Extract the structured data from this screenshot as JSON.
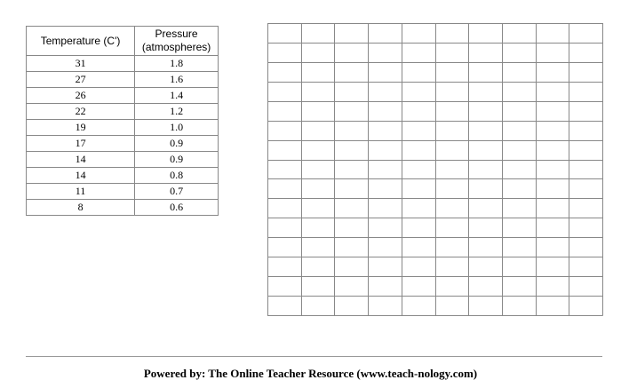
{
  "table": {
    "header": [
      "Temperature (C')",
      "Pressure (atmospheres)"
    ],
    "rows": [
      [
        "31",
        "1.8"
      ],
      [
        "27",
        "1.6"
      ],
      [
        "26",
        "1.4"
      ],
      [
        "22",
        "1.2"
      ],
      [
        "19",
        "1.0"
      ],
      [
        "17",
        "0.9"
      ],
      [
        "14",
        "0.9"
      ],
      [
        "14",
        "0.8"
      ],
      [
        "11",
        "0.7"
      ],
      [
        "8",
        "0.6"
      ]
    ]
  },
  "footer": {
    "text": "Powered by: The Online Teacher Resource (www.teach-nology.com)"
  }
}
